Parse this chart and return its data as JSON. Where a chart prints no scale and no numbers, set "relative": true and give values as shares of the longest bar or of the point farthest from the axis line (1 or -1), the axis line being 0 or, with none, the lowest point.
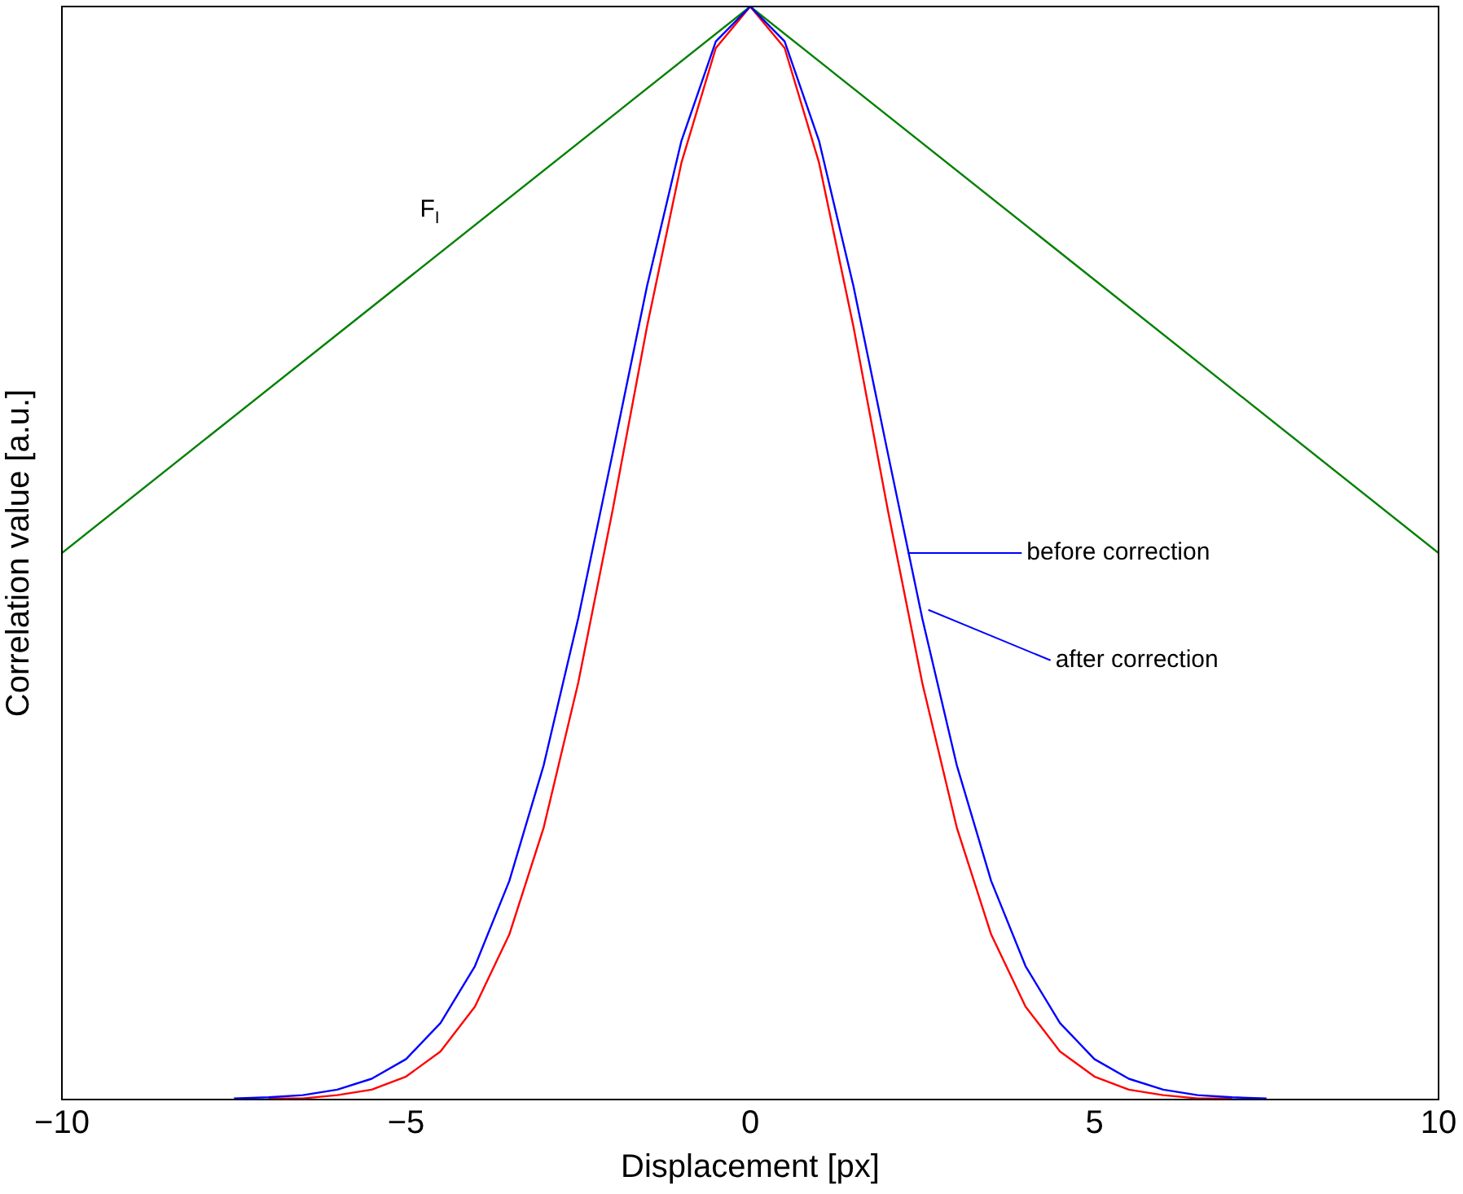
{
  "chart_data": {
    "type": "line",
    "xlabel": "Displacement [px]",
    "ylabel": "Correlation value [a.u.]",
    "relative": true,
    "x": [
      -7.5,
      -7,
      -6.5,
      -6,
      -5.5,
      -5,
      -4.5,
      -4,
      -3.5,
      -3,
      -2.5,
      -2,
      -1.5,
      -1,
      -0.5,
      0,
      0.5,
      1,
      1.5,
      2,
      2.5,
      3,
      3.5,
      4,
      4.5,
      5,
      5.5,
      6,
      6.5,
      7,
      7.5
    ],
    "xlim": [
      -10,
      10
    ],
    "xticks": [
      -10,
      -5,
      0,
      5,
      10
    ],
    "grid": false,
    "legend": false,
    "marker": "none",
    "line_style": "solid",
    "tick_labels": "x",
    "series": [
      {
        "color": "#0000ff",
        "values": [
          0.001,
          0.002,
          0.004,
          0.009,
          0.019,
          0.037,
          0.07,
          0.122,
          0.2,
          0.306,
          0.44,
          0.591,
          0.744,
          0.877,
          0.968,
          1,
          0.968,
          0.877,
          0.744,
          0.591,
          0.44,
          0.306,
          0.2,
          0.122,
          0.07,
          0.037,
          0.019,
          0.009,
          0.004,
          0.002,
          0.001
        ]
      },
      {
        "color": "#ff0000",
        "values": [
          null,
          0.001,
          0.001,
          0.004,
          0.009,
          0.021,
          0.044,
          0.085,
          0.151,
          0.249,
          0.381,
          0.539,
          0.707,
          0.857,
          0.962,
          1,
          0.962,
          0.857,
          0.707,
          0.539,
          0.381,
          0.249,
          0.151,
          0.085,
          0.044,
          0.021,
          0.009,
          0.004,
          0.001,
          0.001,
          null
        ]
      },
      {
        "color": "#008000",
        "x": [
          -10,
          0,
          10
        ],
        "values": [
          0.5,
          1,
          0.5
        ]
      }
    ],
    "annotations": [
      {
        "text": "F$_{I}$",
        "x": -4.8,
        "y": 0.76
      },
      "before correction",
      {
        "text": "after correction",
        "x": 2.54,
        "y": 0.448
      }
    ]
  }
}
